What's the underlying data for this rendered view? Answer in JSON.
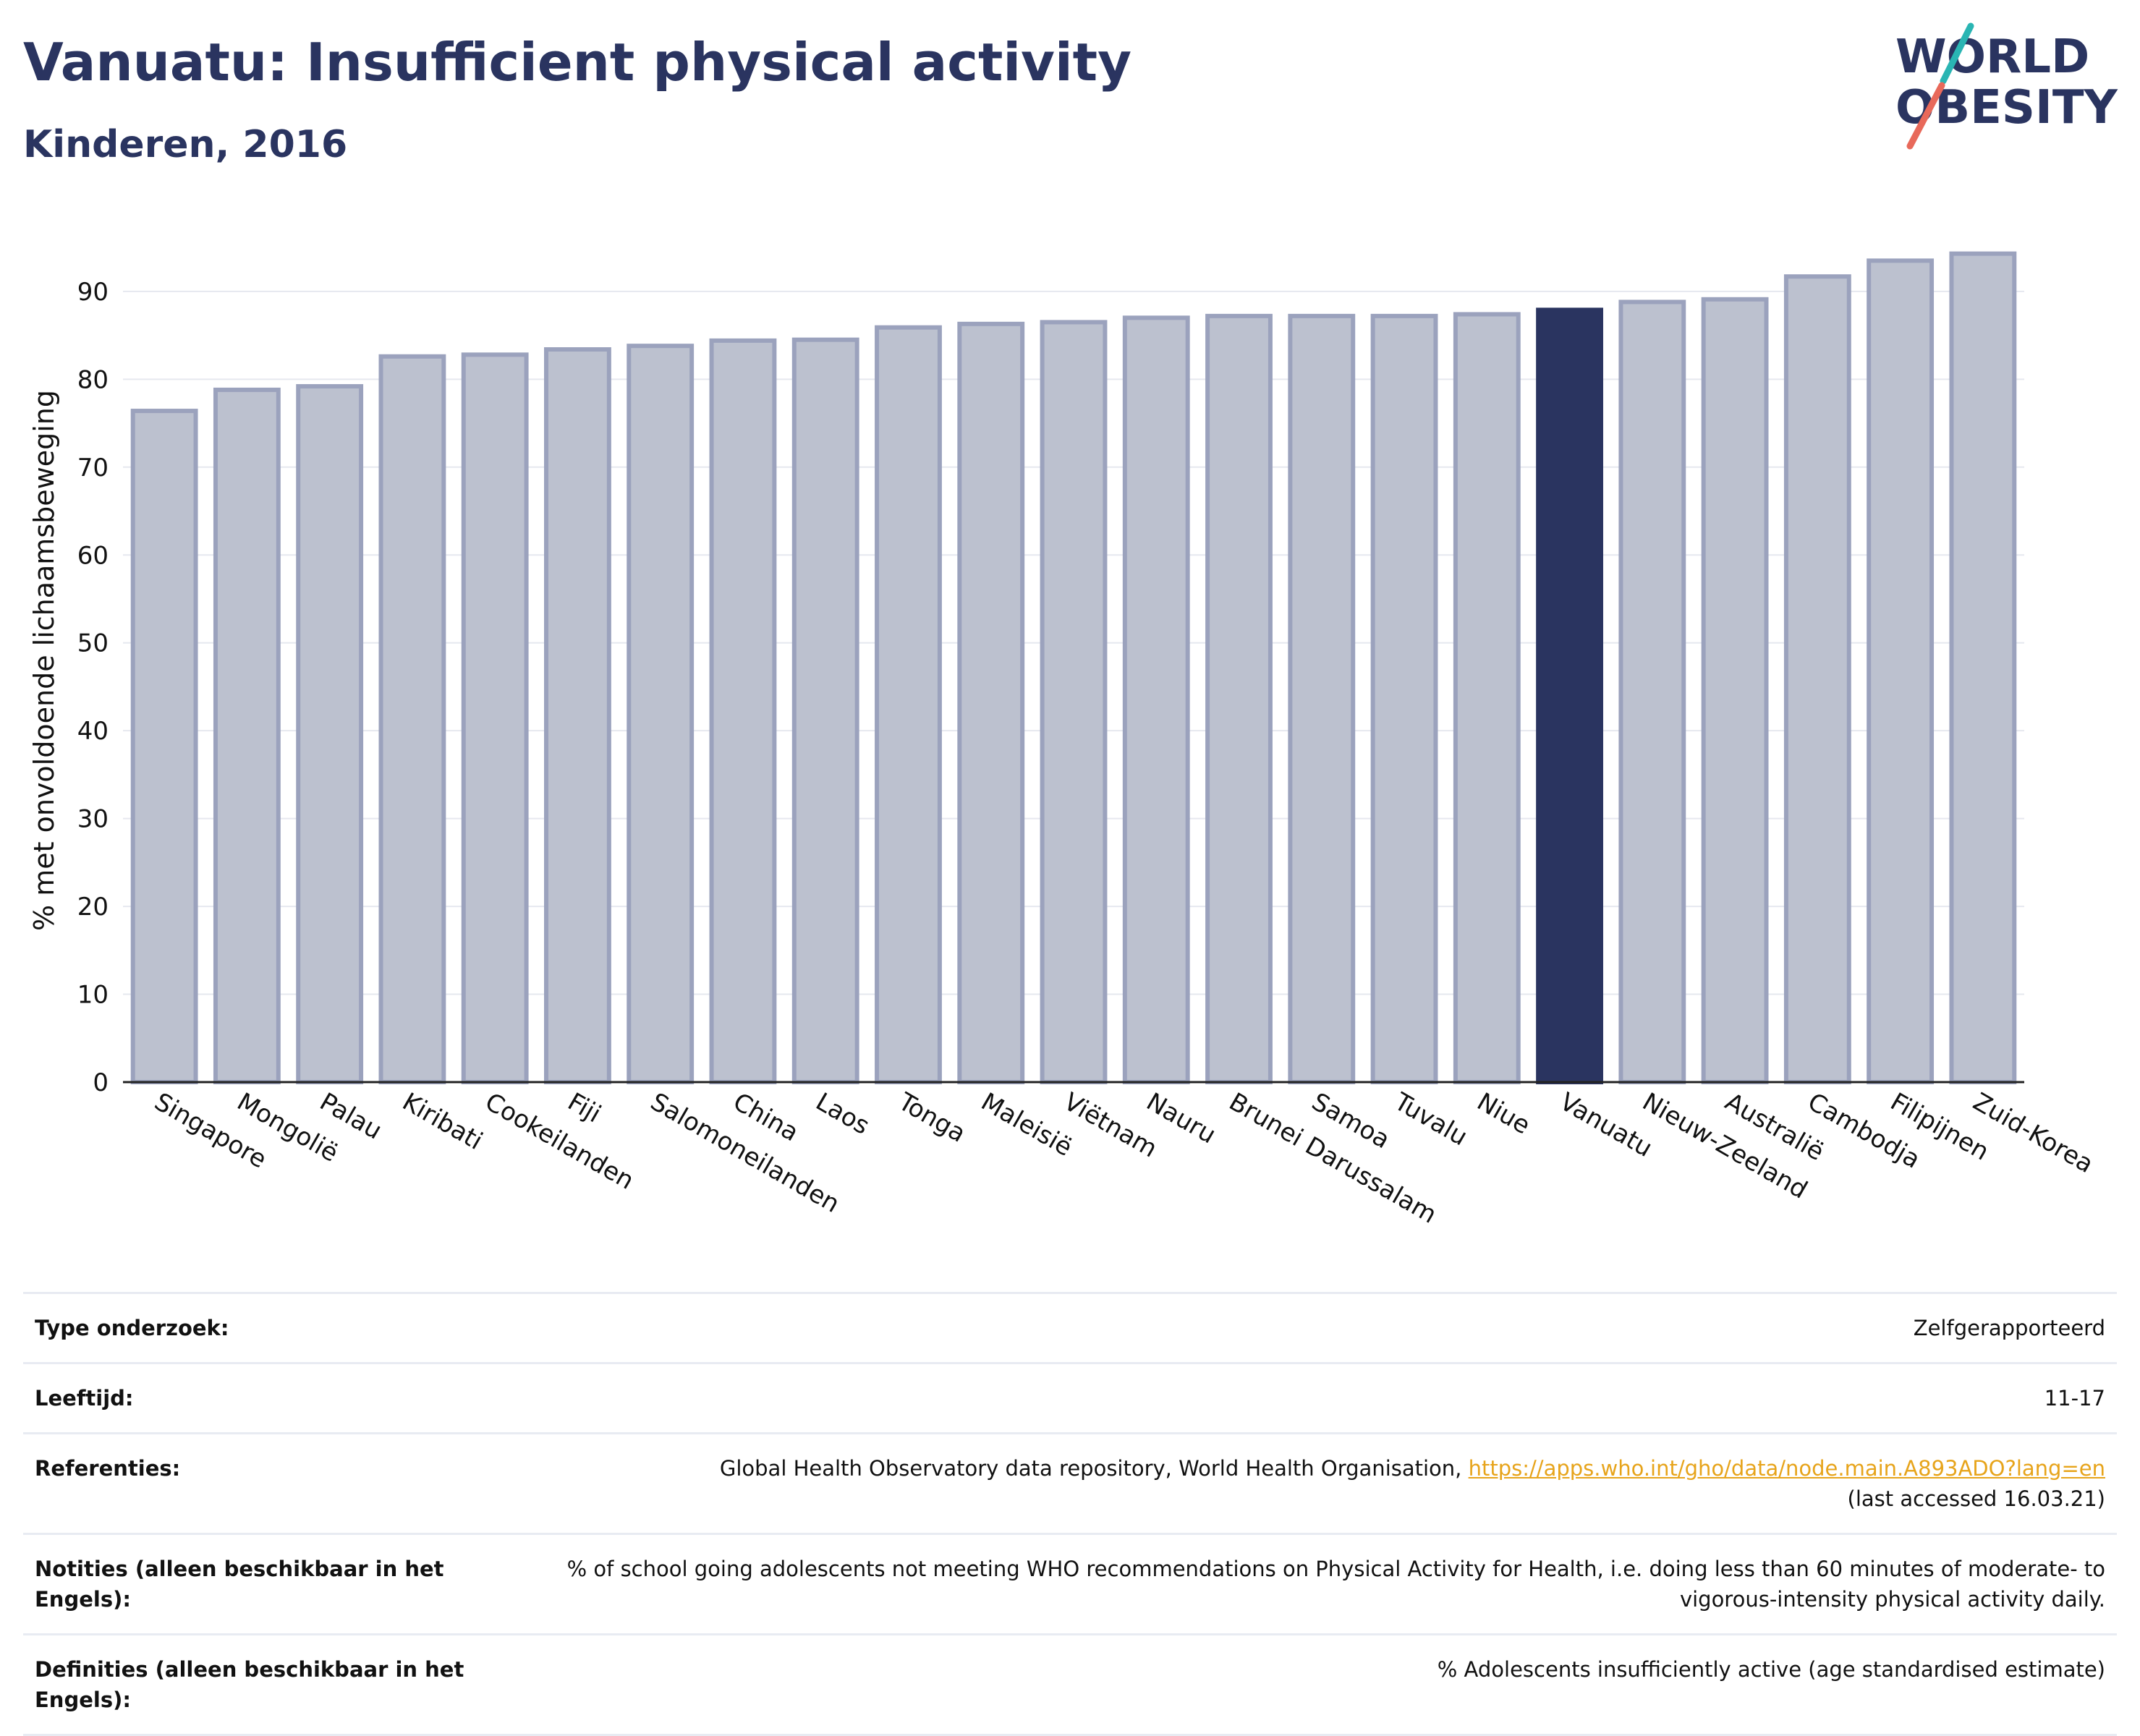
{
  "header": {
    "title": "Vanuatu: Insufficient physical activity",
    "subtitle": "Kinderen, 2016"
  },
  "logo": {
    "line1": "WORLD",
    "line2": "OBESITY",
    "accent_teal": "#2ab5b3",
    "accent_coral": "#e8695a",
    "text_color": "#2a3460"
  },
  "colors": {
    "bar_fill": "#bcc1cf",
    "bar_stroke": "#9ba2bd",
    "highlight": "#2a3460",
    "grid": "#e6e8ef",
    "link": "#e7a41b"
  },
  "chart_data": {
    "type": "bar",
    "title": "Vanuatu: Insufficient physical activity",
    "subtitle": "Kinderen, 2016",
    "ylabel": "% met onvoldoende lichaamsbeweging",
    "xlabel": "",
    "ylim": [
      0,
      96
    ],
    "yticks": [
      0,
      10,
      20,
      30,
      40,
      50,
      60,
      70,
      80,
      90
    ],
    "grid": true,
    "highlight": "Vanuatu",
    "categories": [
      "Singapore",
      "Mongolië",
      "Palau",
      "Kiribati",
      "Cookeilanden",
      "Fiji",
      "Salomoneilanden",
      "China",
      "Laos",
      "Tonga",
      "Maleisië",
      "Viëtnam",
      "Nauru",
      "Brunei Darussalam",
      "Samoa",
      "Tuvalu",
      "Niue",
      "Vanuatu",
      "Nieuw-Zeeland",
      "Australië",
      "Cambodja",
      "Filipijnen",
      "Zuid-Korea"
    ],
    "values": [
      76.4,
      78.8,
      79.2,
      82.6,
      82.8,
      83.4,
      83.8,
      84.4,
      84.5,
      85.9,
      86.3,
      86.5,
      87.0,
      87.2,
      87.2,
      87.2,
      87.4,
      87.9,
      88.8,
      89.1,
      91.7,
      93.5,
      94.3
    ]
  },
  "info": {
    "rows": [
      {
        "label": "Type onderzoek:",
        "value": "Zelfgerapporteerd"
      },
      {
        "label": "Leeftijd:",
        "value": "11-17"
      },
      {
        "label": "Referenties:",
        "value": "Global Health Observatory data repository, World Health Organisation, ",
        "link": "https://apps.who.int/gho/data/node.main.A893ADO?lang=en",
        "suffix": "(last accessed 16.03.21)"
      },
      {
        "label": "Notities (alleen beschikbaar in het Engels):",
        "value": "% of school going adolescents not meeting WHO recommendations on Physical Activity for Health, i.e. doing less than 60 minutes of moderate- to vigorous-intensity physical activity daily."
      },
      {
        "label": "Definities (alleen beschikbaar in het Engels):",
        "value": "% Adolescents insufficiently active (age standardised estimate)"
      }
    ]
  }
}
